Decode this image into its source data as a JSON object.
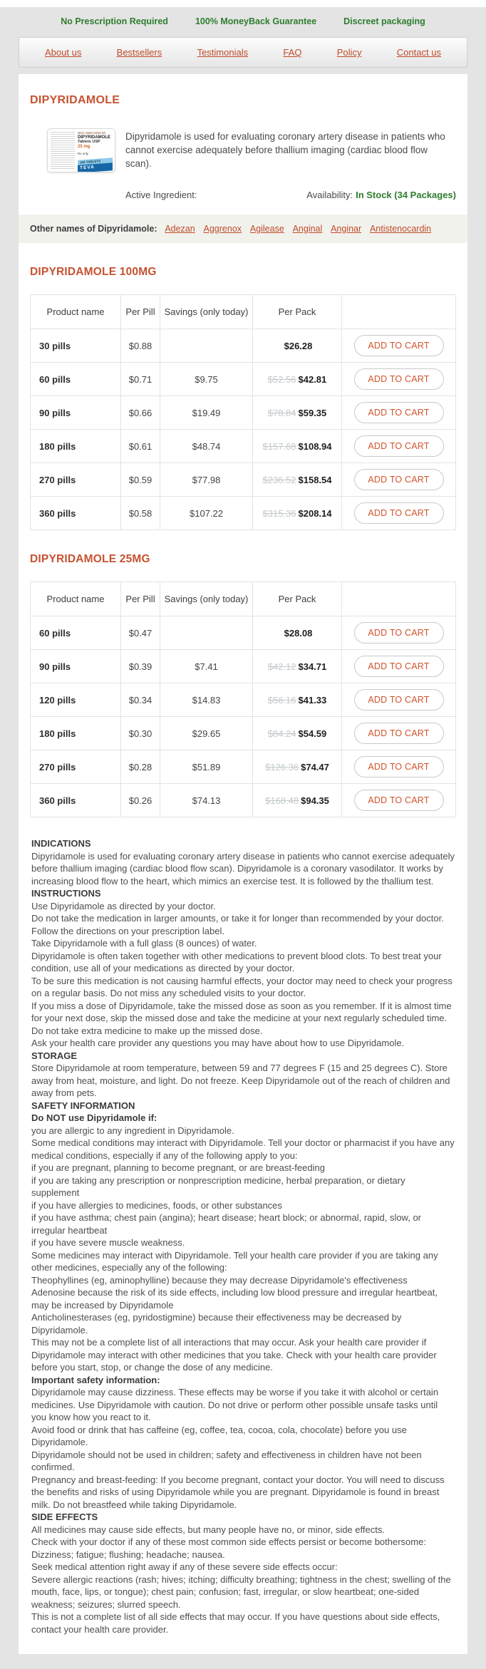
{
  "colors": {
    "accent_orange": "#c75130",
    "link_orange": "#c04b2a",
    "status_green": "#2e7d2e",
    "old_price_gray": "#c3c9cd"
  },
  "topbar": {
    "items": [
      "No Prescription Required",
      "100% MoneyBack Guarantee",
      "Discreet packaging"
    ]
  },
  "nav": {
    "items": [
      "About us",
      "Bestsellers",
      "Testimonials",
      "FAQ",
      "Policy",
      "Contact us"
    ]
  },
  "product": {
    "title": "DIPYRIDAMOLE",
    "description": "Dipyridamole is used for evaluating coronary artery disease in patients who cannot exercise adequately before thallium imaging (cardiac blood flow scan).",
    "active_ingredient_label": "Active Ingredient:",
    "availability_label": "Availability:",
    "availability_value": "In Stock (34 Packages)",
    "other_names_label": "Other names of Dipyridamole:",
    "other_names": [
      "Adezan",
      "Aggrenox",
      "Agilease",
      "Anginal",
      "Anginar",
      "Antistenocardin"
    ],
    "box": {
      "ndc": "NDC 0000-0252-00",
      "name": "DIPYRIDAMOLE",
      "form": "Tablets USP",
      "dose": "25 mg",
      "rx": "Rx only",
      "count": "100 TABLETS",
      "brand": "TEVA"
    }
  },
  "cart_button_label": "ADD TO CART",
  "tables": [
    {
      "title": "DIPYRIDAMOLE 100MG",
      "headers": [
        "Product name",
        "Per Pill",
        "Savings (only today)",
        "Per Pack",
        ""
      ],
      "rows": [
        {
          "name": "30 pills",
          "per_pill": "$0.88",
          "savings": "",
          "old_price": "",
          "price": "$26.28"
        },
        {
          "name": "60 pills",
          "per_pill": "$0.71",
          "savings": "$9.75",
          "old_price": "$52.56",
          "price": "$42.81"
        },
        {
          "name": "90 pills",
          "per_pill": "$0.66",
          "savings": "$19.49",
          "old_price": "$78.84",
          "price": "$59.35"
        },
        {
          "name": "180 pills",
          "per_pill": "$0.61",
          "savings": "$48.74",
          "old_price": "$157.68",
          "price": "$108.94"
        },
        {
          "name": "270 pills",
          "per_pill": "$0.59",
          "savings": "$77.98",
          "old_price": "$236.52",
          "price": "$158.54"
        },
        {
          "name": "360 pills",
          "per_pill": "$0.58",
          "savings": "$107.22",
          "old_price": "$315.36",
          "price": "$208.14"
        }
      ]
    },
    {
      "title": "DIPYRIDAMOLE 25MG",
      "headers": [
        "Product name",
        "Per Pill",
        "Savings (only today)",
        "Per Pack",
        ""
      ],
      "rows": [
        {
          "name": "60 pills",
          "per_pill": "$0.47",
          "savings": "",
          "old_price": "",
          "price": "$28.08"
        },
        {
          "name": "90 pills",
          "per_pill": "$0.39",
          "savings": "$7.41",
          "old_price": "$42.12",
          "price": "$34.71"
        },
        {
          "name": "120 pills",
          "per_pill": "$0.34",
          "savings": "$14.83",
          "old_price": "$56.16",
          "price": "$41.33"
        },
        {
          "name": "180 pills",
          "per_pill": "$0.30",
          "savings": "$29.65",
          "old_price": "$84.24",
          "price": "$54.59"
        },
        {
          "name": "270 pills",
          "per_pill": "$0.28",
          "savings": "$51.89",
          "old_price": "$126.36",
          "price": "$74.47"
        },
        {
          "name": "360 pills",
          "per_pill": "$0.26",
          "savings": "$74.13",
          "old_price": "$168.48",
          "price": "$94.35"
        }
      ]
    }
  ],
  "info": [
    {
      "heading": "INDICATIONS",
      "paragraphs": [
        "Dipyridamole is used for evaluating coronary artery disease in patients who cannot exercise adequately before thallium imaging (cardiac blood flow scan). Dipyridamole is a coronary vasodilator. It works by increasing blood flow to the heart, which mimics an exercise test. It is followed by the thallium test."
      ]
    },
    {
      "heading": "INSTRUCTIONS",
      "paragraphs": [
        "Use Dipyridamole as directed by your doctor.",
        "Do not take the medication in larger amounts, or take it for longer than recommended by your doctor. Follow the directions on your prescription label.",
        "Take Dipyridamole with a full glass (8 ounces) of water.",
        "Dipyridamole is often taken together with other medications to prevent blood clots. To best treat your condition, use all of your medications as directed by your doctor.",
        "To be sure this medication is not causing harmful effects, your doctor may need to check your progress on a regular basis. Do not miss any scheduled visits to your doctor.",
        "If you miss a dose of Dipyridamole, take the missed dose as soon as you remember. If it is almost time for your next dose, skip the missed dose and take the medicine at your next regularly scheduled time. Do not take extra medicine to make up the missed dose.",
        "Ask your health care provider any questions you may have about how to use Dipyridamole."
      ]
    },
    {
      "heading": "STORAGE",
      "paragraphs": [
        "Store Dipyridamole at room temperature, between 59 and 77 degrees F (15 and 25 degrees C). Store away from heat, moisture, and light. Do not freeze. Keep Dipyridamole out of the reach of children and away from pets."
      ]
    },
    {
      "heading": "SAFETY INFORMATION",
      "paragraphs": []
    },
    {
      "heading": "Do NOT use Dipyridamole if:",
      "paragraphs": [
        "you are allergic to any ingredient in Dipyridamole.",
        "Some medical conditions may interact with Dipyridamole. Tell your doctor or pharmacist if you have any medical conditions, especially if any of the following apply to you:",
        "if you are pregnant, planning to become pregnant, or are breast-feeding",
        "if you are taking any prescription or nonprescription medicine, herbal preparation, or dietary supplement",
        "if you have allergies to medicines, foods, or other substances",
        "if you have asthma; chest pain (angina); heart disease; heart block; or abnormal, rapid, slow, or irregular heartbeat",
        "if you have severe muscle weakness.",
        "Some medicines may interact with Dipyridamole. Tell your health care provider if you are taking any other medicines, especially any of the following:",
        "Theophyllines (eg, aminophylline) because they may decrease Dipyridamole's effectiveness",
        "Adenosine because the risk of its side effects, including low blood pressure and irregular heartbeat, may be increased by Dipyridamole",
        "Anticholinesterases (eg, pyridostigmine) because their effectiveness may be decreased by Dipyridamole.",
        "This may not be a complete list of all interactions that may occur. Ask your health care provider if Dipyridamole may interact with other medicines that you take. Check with your health care provider before you start, stop, or change the dose of any medicine."
      ]
    },
    {
      "heading": "Important safety information:",
      "paragraphs": [
        "Dipyridamole may cause dizziness. These effects may be worse if you take it with alcohol or certain medicines. Use Dipyridamole with caution. Do not drive or perform other possible unsafe tasks until you know how you react to it.",
        "Avoid food or drink that has caffeine (eg, coffee, tea, cocoa, cola, chocolate) before you use Dipyridamole.",
        "Dipyridamole should not be used in children; safety and effectiveness in children have not been confirmed.",
        "Pregnancy and breast-feeding: If you become pregnant, contact your doctor. You will need to discuss the benefits and risks of using Dipyridamole while you are pregnant. Dipyridamole is found in breast milk. Do not breastfeed while taking Dipyridamole."
      ]
    },
    {
      "heading": "SIDE EFFECTS",
      "paragraphs": [
        "All medicines may cause side effects, but many people have no, or minor, side effects.",
        "Check with your doctor if any of these most common side effects persist or become bothersome:",
        "Dizziness; fatigue; flushing; headache; nausea.",
        "Seek medical attention right away if any of these severe side effects occur:",
        "Severe allergic reactions (rash; hives; itching; difficulty breathing; tightness in the chest; swelling of the mouth, face, lips, or tongue); chest pain; confusion; fast, irregular, or slow heartbeat; one-sided weakness; seizures; slurred speech.",
        "This is not a complete list of all side effects that may occur. If you have questions about side effects, contact your health care provider."
      ]
    }
  ]
}
